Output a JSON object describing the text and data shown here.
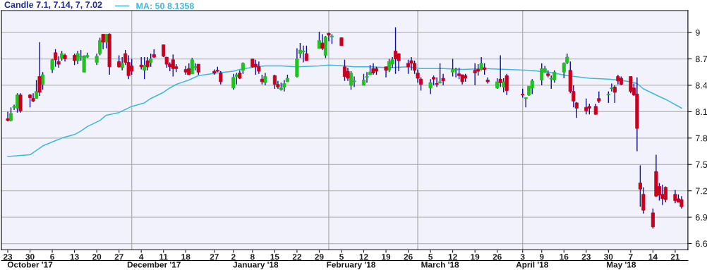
{
  "chart_data": {
    "type": "candlestick",
    "title": "Candle 7.1, 7.14, 7, 7.02",
    "series": [
      {
        "color": "#1ec31e",
        "x": [
          "2017-10-24",
          "2017-10-25",
          "2017-10-26",
          "2017-11-01",
          "2017-11-03",
          "2017-11-06",
          "2017-11-09",
          "2017-11-14",
          "2017-11-15",
          "2017-11-16",
          "2017-11-17",
          "2017-11-20",
          "2017-11-21",
          "2017-11-23",
          "2017-11-28",
          "2017-12-05",
          "2017-12-07",
          "2017-12-20",
          "2017-12-21",
          "2018-01-02",
          "2018-01-03",
          "2018-01-05",
          "2018-01-12",
          "2018-01-17",
          "2018-01-18",
          "2018-01-19",
          "2018-01-22",
          "2018-01-23",
          "2018-01-24",
          "2018-01-29",
          "2018-01-31",
          "2018-02-02",
          "2018-02-08",
          "2018-02-09",
          "2018-02-12",
          "2018-02-13",
          "2018-02-14",
          "2018-02-20",
          "2018-02-21",
          "2018-03-05",
          "2018-03-08",
          "2018-03-12",
          "2018-03-13",
          "2018-03-21",
          "2018-03-26",
          "2018-03-28",
          "2018-04-04",
          "2018-04-05",
          "2018-04-06",
          "2018-04-09",
          "2018-04-10",
          "2018-04-12",
          "2018-04-13",
          "2018-04-16",
          "2018-04-17",
          "2018-04-30",
          "2018-05-01"
        ],
        "ohlc": [
          [
            8.0,
            8.15,
            7.99,
            8.08
          ],
          [
            8.15,
            8.18,
            8.12,
            8.16
          ],
          [
            8.14,
            8.31,
            8.09,
            8.29
          ],
          [
            8.25,
            8.46,
            8.25,
            8.33
          ],
          [
            8.41,
            8.55,
            8.35,
            8.52
          ],
          [
            8.58,
            8.7,
            8.54,
            8.69
          ],
          [
            8.71,
            8.79,
            8.68,
            8.76
          ],
          [
            8.68,
            8.79,
            8.64,
            8.76
          ],
          [
            8.72,
            8.8,
            8.68,
            8.73
          ],
          [
            8.55,
            8.74,
            8.55,
            8.73
          ],
          [
            8.72,
            8.77,
            8.71,
            8.74
          ],
          [
            8.66,
            8.76,
            8.63,
            8.73
          ],
          [
            8.76,
            8.94,
            8.74,
            8.91
          ],
          [
            8.89,
            8.98,
            8.82,
            8.98
          ],
          [
            8.6,
            8.72,
            8.57,
            8.65
          ],
          [
            8.57,
            8.72,
            8.47,
            8.63
          ],
          [
            8.66,
            8.76,
            8.61,
            8.7
          ],
          [
            8.53,
            8.71,
            8.53,
            8.69
          ],
          [
            8.6,
            8.65,
            8.57,
            8.61
          ],
          [
            8.37,
            8.53,
            8.35,
            8.49
          ],
          [
            8.5,
            8.54,
            8.41,
            8.52
          ],
          [
            8.57,
            8.66,
            8.53,
            8.65
          ],
          [
            8.43,
            8.54,
            8.4,
            8.5
          ],
          [
            8.35,
            8.43,
            8.34,
            8.37
          ],
          [
            8.38,
            8.46,
            8.33,
            8.42
          ],
          [
            8.44,
            8.52,
            8.44,
            8.48
          ],
          [
            8.5,
            8.82,
            8.49,
            8.7
          ],
          [
            8.76,
            8.88,
            8.71,
            8.8
          ],
          [
            8.78,
            8.85,
            8.66,
            8.79
          ],
          [
            8.82,
            9.01,
            8.82,
            8.91
          ],
          [
            8.74,
            8.96,
            8.71,
            8.95
          ],
          [
            8.95,
            8.98,
            8.87,
            8.96
          ],
          [
            8.4,
            8.56,
            8.35,
            8.54
          ],
          [
            8.44,
            8.5,
            8.38,
            8.45
          ],
          [
            8.4,
            8.53,
            8.4,
            8.46
          ],
          [
            8.49,
            8.55,
            8.43,
            8.5
          ],
          [
            8.52,
            8.63,
            8.52,
            8.55
          ],
          [
            8.57,
            8.7,
            8.55,
            8.67
          ],
          [
            8.64,
            8.72,
            8.6,
            8.69
          ],
          [
            8.37,
            8.47,
            8.3,
            8.43
          ],
          [
            8.43,
            8.65,
            8.42,
            8.44
          ],
          [
            8.55,
            8.7,
            8.5,
            8.58
          ],
          [
            8.57,
            8.6,
            8.49,
            8.58
          ],
          [
            8.58,
            8.72,
            8.57,
            8.65
          ],
          [
            8.37,
            8.48,
            8.36,
            8.44
          ],
          [
            8.38,
            8.48,
            8.32,
            8.44
          ],
          [
            8.25,
            8.26,
            8.15,
            8.26
          ],
          [
            8.29,
            8.39,
            8.28,
            8.39
          ],
          [
            8.37,
            8.47,
            8.3,
            8.45
          ],
          [
            8.46,
            8.65,
            8.4,
            8.59
          ],
          [
            8.55,
            8.62,
            8.54,
            8.59
          ],
          [
            8.47,
            8.51,
            8.36,
            8.48
          ],
          [
            8.46,
            8.57,
            8.43,
            8.55
          ],
          [
            8.55,
            8.66,
            8.48,
            8.65
          ],
          [
            8.66,
            8.76,
            8.64,
            8.72
          ],
          [
            8.29,
            8.33,
            8.2,
            8.3
          ],
          [
            8.36,
            8.42,
            8.33,
            8.37
          ]
        ]
      },
      {
        "color": "#c8001e",
        "x": [
          "2017-10-23",
          "2017-10-27",
          "2017-10-30",
          "2017-10-31",
          "2017-11-02",
          "2017-11-07",
          "2017-11-08",
          "2017-11-10",
          "2017-11-13",
          "2017-11-22",
          "2017-11-24",
          "2017-11-27",
          "2017-11-29",
          "2017-11-30",
          "2017-12-01",
          "2017-12-04",
          "2017-12-06",
          "2017-12-08",
          "2017-12-11",
          "2017-12-12",
          "2017-12-13",
          "2017-12-14",
          "2017-12-15",
          "2017-12-18",
          "2017-12-19",
          "2017-12-22",
          "2017-12-27",
          "2017-12-28",
          "2017-12-29",
          "2018-01-04",
          "2018-01-08",
          "2018-01-09",
          "2018-01-10",
          "2018-01-11",
          "2018-01-15",
          "2018-01-16",
          "2018-01-25",
          "2018-01-30",
          "2018-02-01",
          "2018-02-05",
          "2018-02-06",
          "2018-02-07",
          "2018-02-15",
          "2018-02-16",
          "2018-02-19",
          "2018-02-22",
          "2018-02-23",
          "2018-02-26",
          "2018-02-27",
          "2018-02-28",
          "2018-03-01",
          "2018-03-02",
          "2018-03-06",
          "2018-03-07",
          "2018-03-09",
          "2018-03-14",
          "2018-03-15",
          "2018-03-16",
          "2018-03-19",
          "2018-03-20",
          "2018-03-22",
          "2018-03-23",
          "2018-03-27",
          "2018-03-29",
          "2018-04-03",
          "2018-04-11",
          "2018-04-18",
          "2018-04-19",
          "2018-04-20",
          "2018-04-23",
          "2018-04-24",
          "2018-04-26",
          "2018-04-27",
          "2018-05-02",
          "2018-05-03",
          "2018-05-04",
          "2018-05-07",
          "2018-05-08",
          "2018-05-09",
          "2018-05-10",
          "2018-05-11",
          "2018-05-14",
          "2018-05-15",
          "2018-05-16",
          "2018-05-17",
          "2018-05-18",
          "2018-05-21",
          "2018-05-22",
          "2018-05-23"
        ],
        "ohlc": [
          [
            8.02,
            8.1,
            7.99,
            8.0
          ],
          [
            8.29,
            8.31,
            8.09,
            8.11
          ],
          [
            8.29,
            8.3,
            8.15,
            8.26
          ],
          [
            8.25,
            8.31,
            8.21,
            8.22
          ],
          [
            8.5,
            8.89,
            8.28,
            8.32
          ],
          [
            8.77,
            8.81,
            8.61,
            8.69
          ],
          [
            8.67,
            8.73,
            8.6,
            8.64
          ],
          [
            8.74,
            8.76,
            8.67,
            8.7
          ],
          [
            8.74,
            8.76,
            8.63,
            8.68
          ],
          [
            8.98,
            8.98,
            8.81,
            8.89
          ],
          [
            8.98,
            8.99,
            8.52,
            8.61
          ],
          [
            8.67,
            8.74,
            8.6,
            8.61
          ],
          [
            8.76,
            8.8,
            8.63,
            8.66
          ],
          [
            8.66,
            8.74,
            8.47,
            8.51
          ],
          [
            8.62,
            8.7,
            8.52,
            8.56
          ],
          [
            8.63,
            8.72,
            8.58,
            8.61
          ],
          [
            8.68,
            8.72,
            8.57,
            8.61
          ],
          [
            8.75,
            8.81,
            8.71,
            8.72
          ],
          [
            8.86,
            8.86,
            8.72,
            8.73
          ],
          [
            8.72,
            8.72,
            8.6,
            8.64
          ],
          [
            8.64,
            8.66,
            8.56,
            8.61
          ],
          [
            8.69,
            8.75,
            8.5,
            8.59
          ],
          [
            8.61,
            8.64,
            8.55,
            8.59
          ],
          [
            8.58,
            8.62,
            8.52,
            8.55
          ],
          [
            8.59,
            8.65,
            8.52,
            8.52
          ],
          [
            8.64,
            8.64,
            8.52,
            8.55
          ],
          [
            8.56,
            8.58,
            8.52,
            8.54
          ],
          [
            8.57,
            8.61,
            8.55,
            8.56
          ],
          [
            8.54,
            8.56,
            8.41,
            8.44
          ],
          [
            8.54,
            8.57,
            8.47,
            8.48
          ],
          [
            8.7,
            8.7,
            8.6,
            8.61
          ],
          [
            8.64,
            8.69,
            8.52,
            8.61
          ],
          [
            8.61,
            8.67,
            8.53,
            8.56
          ],
          [
            8.47,
            8.52,
            8.41,
            8.44
          ],
          [
            8.51,
            8.52,
            8.36,
            8.41
          ],
          [
            8.41,
            8.45,
            8.36,
            8.38
          ],
          [
            8.76,
            8.85,
            8.68,
            8.68
          ],
          [
            8.88,
            8.98,
            8.8,
            8.82
          ],
          [
            8.99,
            9.0,
            8.9,
            8.97
          ],
          [
            8.94,
            8.94,
            8.85,
            8.85
          ],
          [
            8.61,
            8.69,
            8.45,
            8.5
          ],
          [
            8.56,
            8.6,
            8.45,
            8.48
          ],
          [
            8.59,
            8.65,
            8.52,
            8.54
          ],
          [
            8.59,
            8.61,
            8.52,
            8.56
          ],
          [
            8.61,
            8.61,
            8.49,
            8.57
          ],
          [
            8.79,
            9.06,
            8.53,
            8.7
          ],
          [
            8.76,
            8.76,
            8.56,
            8.68
          ],
          [
            8.65,
            8.69,
            8.53,
            8.61
          ],
          [
            8.68,
            8.72,
            8.57,
            8.65
          ],
          [
            8.65,
            8.68,
            8.53,
            8.57
          ],
          [
            8.54,
            8.58,
            8.43,
            8.48
          ],
          [
            8.47,
            8.49,
            8.34,
            8.41
          ],
          [
            8.49,
            8.51,
            8.4,
            8.47
          ],
          [
            8.42,
            8.49,
            8.38,
            8.41
          ],
          [
            8.48,
            8.53,
            8.4,
            8.45
          ],
          [
            8.53,
            8.6,
            8.47,
            8.51
          ],
          [
            8.52,
            8.52,
            8.41,
            8.44
          ],
          [
            8.51,
            8.53,
            8.44,
            8.48
          ],
          [
            8.57,
            8.65,
            8.4,
            8.54
          ],
          [
            8.58,
            8.64,
            8.51,
            8.56
          ],
          [
            8.6,
            8.65,
            8.52,
            8.58
          ],
          [
            8.46,
            8.49,
            8.42,
            8.44
          ],
          [
            8.47,
            8.74,
            8.38,
            8.43
          ],
          [
            8.51,
            8.53,
            8.29,
            8.34
          ],
          [
            8.3,
            8.36,
            8.26,
            8.29
          ],
          [
            8.53,
            8.57,
            8.49,
            8.51
          ],
          [
            8.57,
            8.67,
            8.31,
            8.33
          ],
          [
            8.33,
            8.4,
            8.15,
            8.22
          ],
          [
            8.2,
            8.21,
            8.03,
            8.14
          ],
          [
            8.15,
            8.25,
            8.07,
            8.11
          ],
          [
            8.16,
            8.19,
            8.07,
            8.14
          ],
          [
            8.16,
            8.19,
            8.07,
            8.07
          ],
          [
            8.25,
            8.33,
            8.2,
            8.22
          ],
          [
            8.38,
            8.4,
            8.2,
            8.32
          ],
          [
            8.5,
            8.52,
            8.41,
            8.45
          ],
          [
            8.48,
            8.5,
            8.4,
            8.41
          ],
          [
            8.5,
            8.5,
            8.31,
            8.33
          ],
          [
            8.37,
            8.42,
            8.28,
            8.29
          ],
          [
            8.3,
            8.49,
            7.65,
            7.91
          ],
          [
            7.29,
            7.49,
            7.02,
            7.22
          ],
          [
            7.16,
            7.24,
            6.94,
            6.98
          ],
          [
            6.95,
            7.0,
            6.77,
            6.79
          ],
          [
            7.42,
            7.61,
            7.13,
            7.14
          ],
          [
            7.25,
            7.29,
            7.09,
            7.15
          ],
          [
            7.16,
            7.27,
            7.04,
            7.11
          ],
          [
            7.24,
            7.25,
            7.07,
            7.1
          ],
          [
            7.16,
            7.21,
            7.06,
            7.09
          ],
          [
            7.11,
            7.16,
            7.07,
            7.07
          ],
          [
            7.1,
            7.14,
            7.0,
            7.02
          ]
        ]
      },
      {
        "type": "line",
        "name": "MA: 50 8.1358",
        "color": "#3cb9dc",
        "x": [
          "2017-10-23",
          "2017-10-30",
          "2017-11-01",
          "2017-11-03",
          "2017-11-07",
          "2017-11-09",
          "2017-11-13",
          "2017-11-15",
          "2017-11-17",
          "2017-11-21",
          "2017-11-23",
          "2017-11-27",
          "2017-12-01",
          "2017-12-05",
          "2017-12-07",
          "2017-12-11",
          "2017-12-13",
          "2017-12-15",
          "2017-12-19",
          "2017-12-22",
          "2017-12-28",
          "2018-01-02",
          "2018-01-04",
          "2018-01-09",
          "2018-01-12",
          "2018-01-17",
          "2018-01-22",
          "2018-01-29",
          "2018-02-01",
          "2018-02-06",
          "2018-02-09",
          "2018-02-14",
          "2018-02-20",
          "2018-02-26",
          "2018-03-02",
          "2018-03-09",
          "2018-03-15",
          "2018-03-22",
          "2018-03-29",
          "2018-04-05",
          "2018-04-11",
          "2018-04-17",
          "2018-04-24",
          "2018-04-30",
          "2018-05-03",
          "2018-05-07",
          "2018-05-09",
          "2018-05-11",
          "2018-05-15",
          "2018-05-18",
          "2018-05-23"
        ],
        "values": [
          7.59,
          7.61,
          7.66,
          7.71,
          7.77,
          7.8,
          7.84,
          7.88,
          7.93,
          8.0,
          8.06,
          8.09,
          8.16,
          8.2,
          8.25,
          8.32,
          8.37,
          8.41,
          8.46,
          8.51,
          8.54,
          8.56,
          8.58,
          8.61,
          8.62,
          8.62,
          8.61,
          8.62,
          8.63,
          8.62,
          8.61,
          8.61,
          8.6,
          8.61,
          8.59,
          8.59,
          8.58,
          8.59,
          8.58,
          8.57,
          8.55,
          8.51,
          8.48,
          8.47,
          8.46,
          8.44,
          8.42,
          8.36,
          8.29,
          8.24,
          8.14
        ]
      }
    ],
    "xlim": [
      "2017-10-21",
      "2018-05-25"
    ],
    "xticks": [
      {
        "value": "2017-10-23",
        "label": "23"
      },
      {
        "value": "2017-10-30",
        "label": "30"
      },
      {
        "value": "2017-11-06",
        "label": "6"
      },
      {
        "value": "2017-11-13",
        "label": "13"
      },
      {
        "value": "2017-11-20",
        "label": "20"
      },
      {
        "value": "2017-11-27",
        "label": "27"
      },
      {
        "value": "2017-12-04",
        "label": "4"
      },
      {
        "value": "2017-12-11",
        "label": "11"
      },
      {
        "value": "2017-12-18",
        "label": "18"
      },
      {
        "value": "2017-12-27",
        "label": "27"
      },
      {
        "value": "2018-01-02",
        "label": "2"
      },
      {
        "value": "2018-01-08",
        "label": "8"
      },
      {
        "value": "2018-01-15",
        "label": "15"
      },
      {
        "value": "2018-01-22",
        "label": "22"
      },
      {
        "value": "2018-01-29",
        "label": "29"
      },
      {
        "value": "2018-02-05",
        "label": "5"
      },
      {
        "value": "2018-02-12",
        "label": "12"
      },
      {
        "value": "2018-02-19",
        "label": "19"
      },
      {
        "value": "2018-02-26",
        "label": "26"
      },
      {
        "value": "2018-03-05",
        "label": "5"
      },
      {
        "value": "2018-03-12",
        "label": "12"
      },
      {
        "value": "2018-03-19",
        "label": "19"
      },
      {
        "value": "2018-03-26",
        "label": "26"
      },
      {
        "value": "2018-04-03",
        "label": "3"
      },
      {
        "value": "2018-04-09",
        "label": "9"
      },
      {
        "value": "2018-04-16",
        "label": "16"
      },
      {
        "value": "2018-04-23",
        "label": "23"
      },
      {
        "value": "2018-04-30",
        "label": "30"
      },
      {
        "value": "2018-05-07",
        "label": "7"
      },
      {
        "value": "2018-05-14",
        "label": "14"
      },
      {
        "value": "2018-05-21",
        "label": "21"
      }
    ],
    "x2lim": [
      "2017-10-21",
      "2018-05-25"
    ],
    "x2ticks": [
      {
        "value": "2017-10-30",
        "label": "October '17"
      },
      {
        "value": "2017-12-08",
        "label": "December '17"
      },
      {
        "value": "2018-01-09",
        "label": "January '18"
      },
      {
        "value": "2018-02-08",
        "label": "February '18"
      },
      {
        "value": "2018-03-08",
        "label": "March '18"
      },
      {
        "value": "2018-04-06",
        "label": "April '18"
      },
      {
        "value": "2018-05-04",
        "label": "May '18"
      }
    ],
    "ylim": [
      6.53,
      9.25
    ],
    "yticks": [
      6.6,
      6.9,
      7.2,
      7.5,
      7.8,
      8.1,
      8.4,
      8.7,
      9
    ],
    "ref_lines": [
      {
        "axis": "x",
        "value": "2017-12-01",
        "color": "#b4b4b4"
      },
      {
        "axis": "x",
        "value": "2018-02-01",
        "color": "#b4b4b4"
      },
      {
        "axis": "x",
        "value": "2018-03-01",
        "color": "#b4b4b4"
      },
      {
        "axis": "x",
        "value": "2018-04-03",
        "color": "#b4b4b4"
      }
    ],
    "grid": "y",
    "legend": "top left"
  }
}
